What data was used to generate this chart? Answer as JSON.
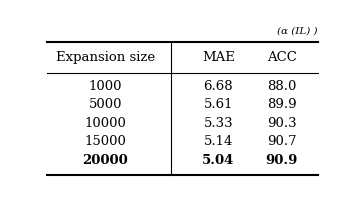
{
  "title_partial": "(α (IL) )",
  "headers": [
    "Expansion size",
    "MAE",
    "ACC"
  ],
  "rows": [
    [
      "1000",
      "6.68",
      "88.0"
    ],
    [
      "5000",
      "5.61",
      "89.9"
    ],
    [
      "10000",
      "5.33",
      "90.3"
    ],
    [
      "15000",
      "5.14",
      "90.7"
    ],
    [
      "20000",
      "5.04",
      "90.9"
    ]
  ],
  "bold_last_row": true,
  "background_color": "#ffffff",
  "text_color": "#000000",
  "font_size": 9.5
}
